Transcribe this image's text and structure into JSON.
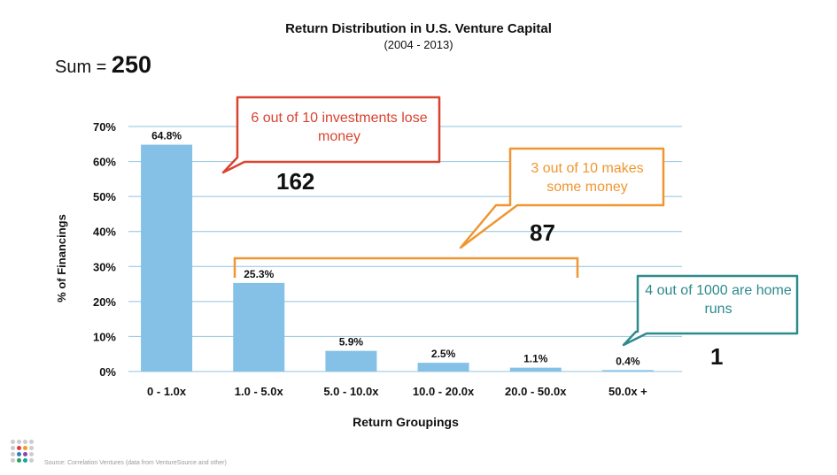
{
  "title": "Return Distribution in U.S. Venture Capital",
  "subtitle": "(2004 - 2013)",
  "sum_label": "Sum =",
  "sum_value": "250",
  "source": "Source: Correlation Ventures (data from VentureSource and other)",
  "callouts": {
    "lose": "6 out of 10 investments lose money",
    "some": "3 out of 10 makes some money",
    "home": "4 out of 1000 are home runs"
  },
  "counts": {
    "lose": "162",
    "some": "87",
    "home": "1"
  },
  "colors": {
    "bar": "#85c1e6",
    "grid": "#8fc3de",
    "red": "#d9432f",
    "orange": "#ef9630",
    "teal": "#2e8a8d"
  },
  "chart_data": {
    "type": "bar",
    "categories": [
      "0 - 1.0x",
      "1.0 - 5.0x",
      "5.0 - 10.0x",
      "10.0 - 20.0x",
      "20.0 - 50.0x",
      "50.0x +"
    ],
    "values": [
      64.8,
      25.3,
      5.9,
      2.5,
      1.1,
      0.4
    ],
    "data_labels": [
      "64.8%",
      "25.3%",
      "5.9%",
      "2.5%",
      "1.1%",
      "0.4%"
    ],
    "yticks": [
      "0%",
      "10%",
      "20%",
      "30%",
      "40%",
      "50%",
      "60%",
      "70%"
    ],
    "ylim": [
      0,
      70
    ],
    "xlabel": "Return Groupings",
    "ylabel": "% of Financings",
    "grid": true
  }
}
